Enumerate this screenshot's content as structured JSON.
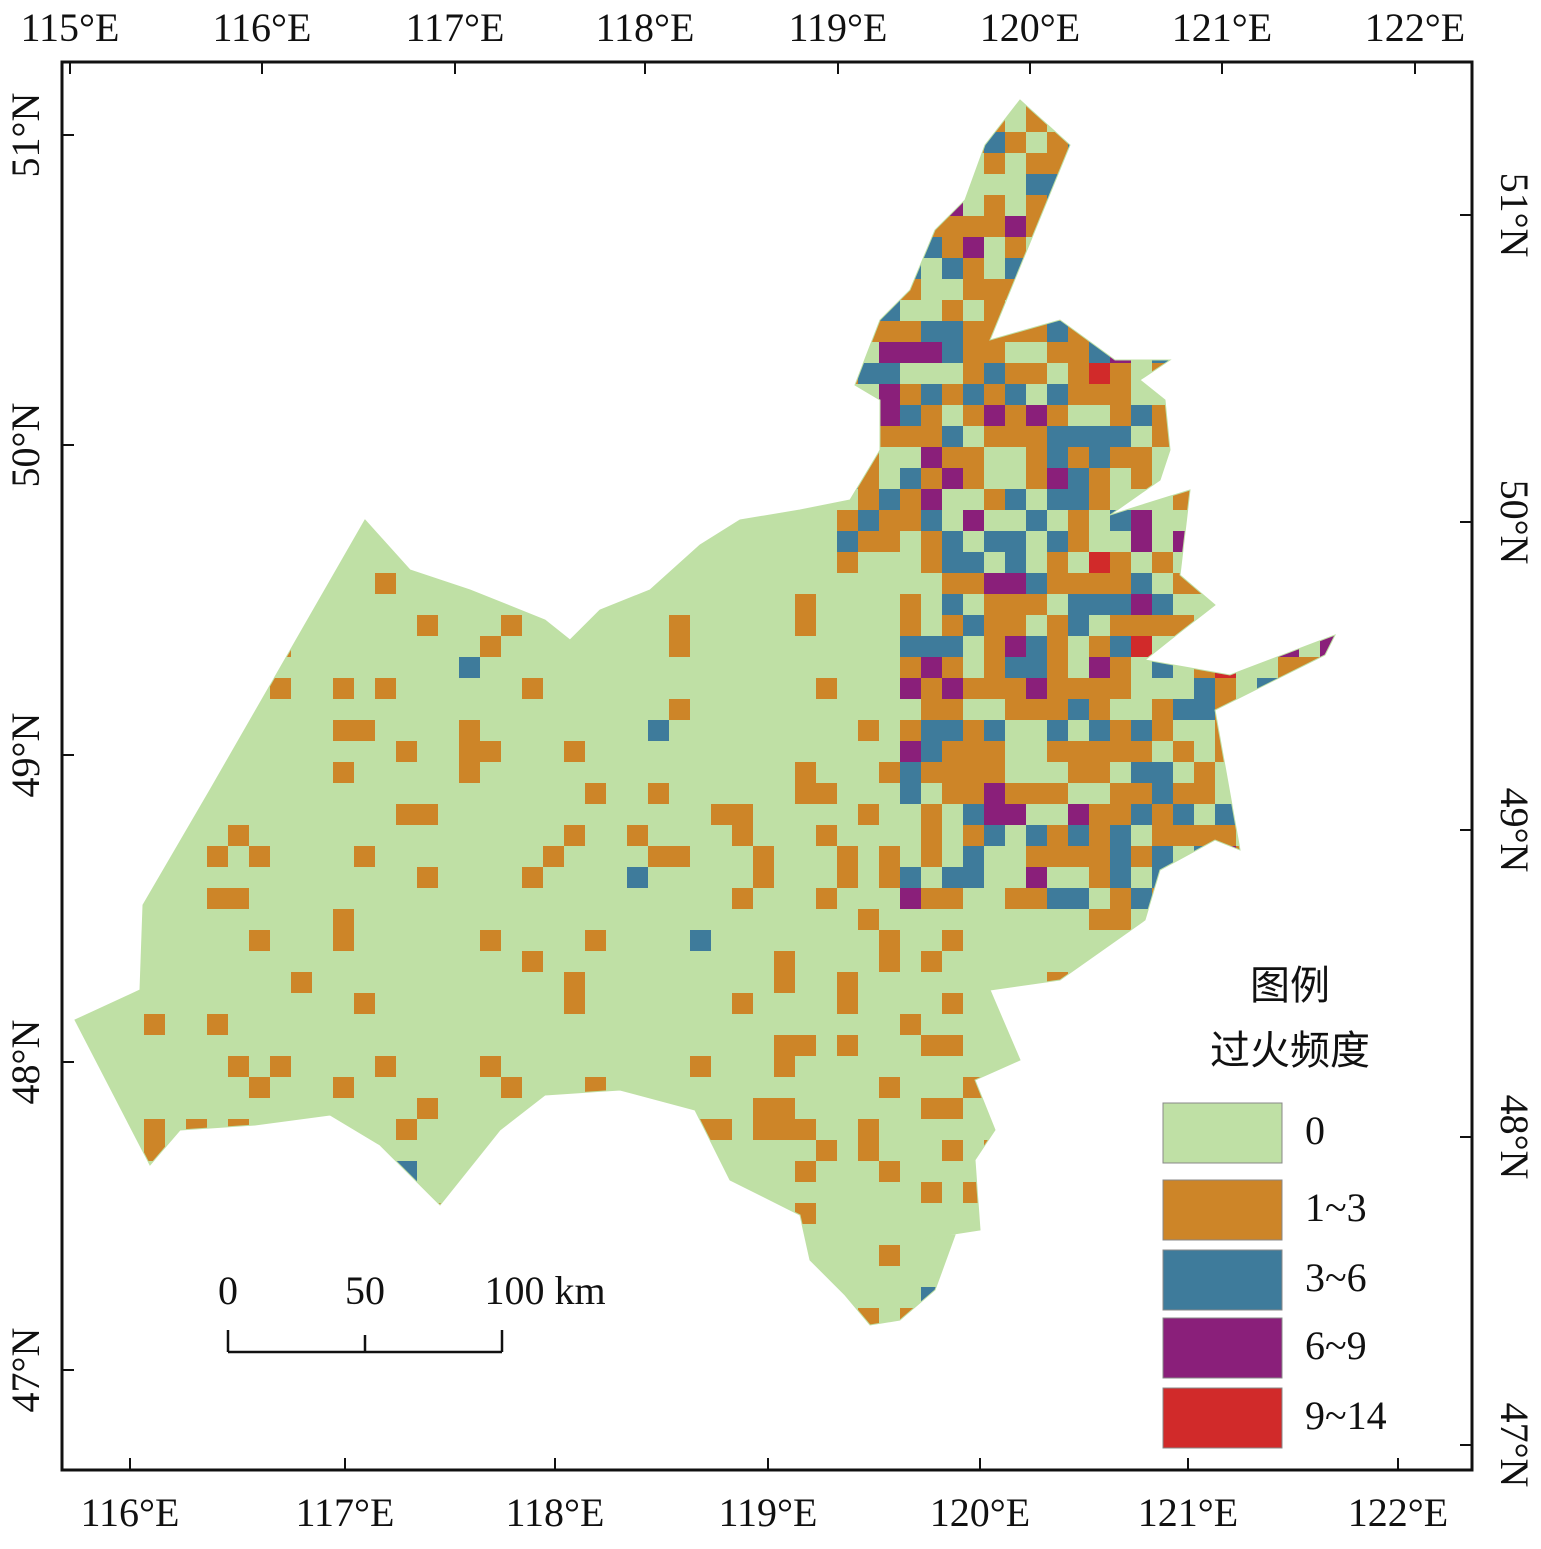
{
  "map": {
    "top_longitude_labels": [
      "115°E",
      "116°E",
      "117°E",
      "118°E",
      "119°E",
      "120°E",
      "121°E",
      "122°E"
    ],
    "bottom_longitude_labels": [
      "116°E",
      "117°E",
      "118°E",
      "119°E",
      "120°E",
      "121°E",
      "122°E"
    ],
    "left_latitude_labels": [
      "51°N",
      "50°N",
      "49°N",
      "48°N",
      "47°N"
    ],
    "right_latitude_labels": [
      "51°N",
      "50°N",
      "49°N",
      "48°N",
      "47°N"
    ],
    "scale_bar": {
      "labels": [
        "0",
        "50",
        "100 km"
      ]
    },
    "legend": {
      "title": "图例",
      "subtitle": "过火频度",
      "items": [
        {
          "label": "0",
          "color": "#bfe0a5"
        },
        {
          "label": "1~3",
          "color": "#cd8528"
        },
        {
          "label": "3~6",
          "color": "#3e7b9b"
        },
        {
          "label": "6~9",
          "color": "#8a1f7a"
        },
        {
          "label": "9~14",
          "color": "#d12a2a"
        }
      ]
    }
  }
}
